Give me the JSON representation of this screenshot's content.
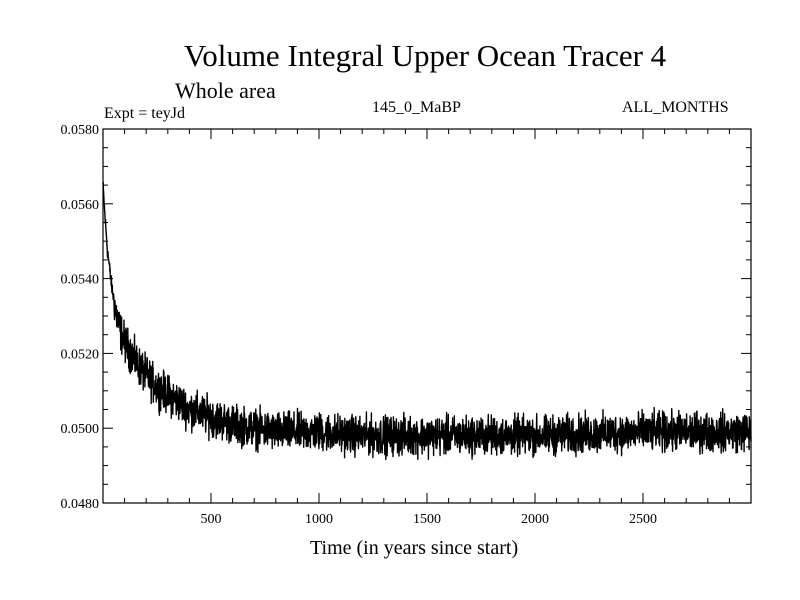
{
  "chart_data": {
    "type": "line",
    "title": "Volume Integral Upper Ocean Tracer 4",
    "subtitle": "Whole area",
    "annotations": {
      "left": "Expt = teyJd",
      "center": "145_0_MaBP",
      "right": "ALL_MONTHS"
    },
    "xlabel": "Time (in years since start)",
    "ylabel": "",
    "xlim": [
      0,
      3000
    ],
    "ylim": [
      0.048,
      0.058
    ],
    "xticks": [
      500,
      1000,
      1500,
      2000,
      2500
    ],
    "xtick_labels": [
      "500",
      "1000",
      "1500",
      "2000",
      "2500"
    ],
    "yticks": [
      0.048,
      0.05,
      0.052,
      0.054,
      0.056,
      0.058
    ],
    "ytick_labels": [
      "0.0480",
      "0.0500",
      "0.0520",
      "0.0540",
      "0.0560",
      "0.0580"
    ],
    "grid": false,
    "series": [
      {
        "name": "Tracer 4",
        "x": [
          0,
          10,
          20,
          40,
          60,
          80,
          100,
          150,
          200,
          250,
          300,
          400,
          500,
          600,
          700,
          800,
          1000,
          1200,
          1500,
          2000,
          2500,
          3000
        ],
        "values": [
          0.0565,
          0.0556,
          0.0548,
          0.0538,
          0.0531,
          0.0526,
          0.0523,
          0.0518,
          0.0514,
          0.0511,
          0.0509,
          0.0505,
          0.0503,
          0.0501,
          0.05,
          0.0499,
          0.0499,
          0.0498,
          0.0498,
          0.0498,
          0.0499,
          0.0499
        ],
        "noise_amplitude": 0.0004,
        "samples": 3000
      }
    ],
    "line_color": "#000000"
  }
}
